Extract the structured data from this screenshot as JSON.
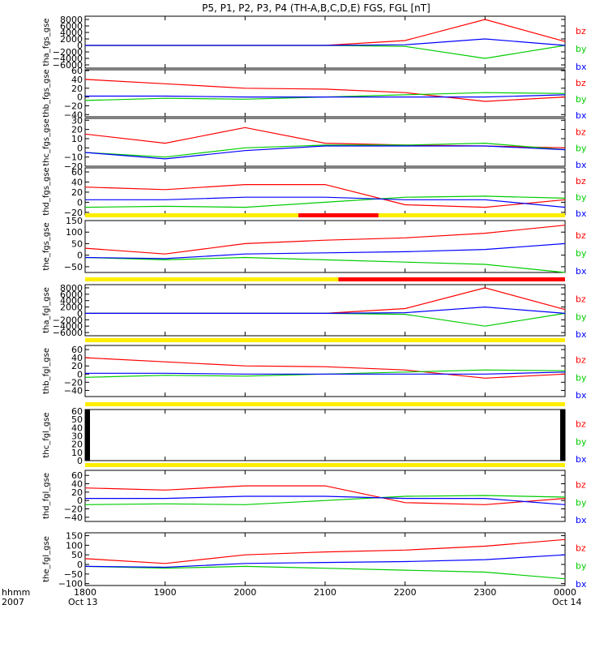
{
  "title": "P5, P1, P2, P3, P4 (TH-A,B,C,D,E) FGS, FGL [nT]",
  "footer": {
    "left_top": "hhmm",
    "left_bottom": "2007",
    "x_ticks": [
      "1800",
      "1900",
      "2000",
      "2100",
      "2200",
      "2300",
      "0000"
    ],
    "date_left": "Oct 13",
    "date_right": "Oct 14"
  },
  "legend": {
    "bz": {
      "label": "bz",
      "color": "#ff0000"
    },
    "by": {
      "label": "by",
      "color": "#00cc00"
    },
    "bx": {
      "label": "bx",
      "color": "#0000ff"
    }
  },
  "chart_data": [
    {
      "type": "line",
      "ylabel": "tha_fgs_gse",
      "ylim": [
        -7000,
        9000
      ],
      "yticks": [
        "8000",
        "6000",
        "4000",
        "2000",
        "0",
        "−2000",
        "−4000",
        "−6000"
      ],
      "x": [
        "1800",
        "1900",
        "2000",
        "2100",
        "2200",
        "2300",
        "0000"
      ],
      "series": [
        {
          "name": "bz",
          "values": [
            0,
            0,
            0,
            0,
            1500,
            8000,
            1200
          ]
        },
        {
          "name": "by",
          "values": [
            0,
            0,
            0,
            0,
            -300,
            -4000,
            0
          ]
        },
        {
          "name": "bx",
          "values": [
            0,
            0,
            0,
            0,
            200,
            2000,
            0
          ]
        }
      ],
      "status_bar": null
    },
    {
      "type": "line",
      "ylabel": "thb_fgs_gse",
      "ylim": [
        -45,
        62
      ],
      "yticks": [
        "60",
        "40",
        "20",
        "0",
        "−20",
        "−40"
      ],
      "x": [
        "1800",
        "1900",
        "2000",
        "2100",
        "2200",
        "2300",
        "0000"
      ],
      "series": [
        {
          "name": "bz",
          "values": [
            40,
            30,
            20,
            18,
            10,
            -10,
            0
          ]
        },
        {
          "name": "by",
          "values": [
            -8,
            -3,
            -5,
            0,
            5,
            10,
            8
          ]
        },
        {
          "name": "bx",
          "values": [
            2,
            2,
            0,
            0,
            0,
            0,
            5
          ]
        }
      ],
      "status_bar": null
    },
    {
      "type": "line",
      "ylabel": "thc_fgs_gse",
      "ylim": [
        -20,
        32
      ],
      "yticks": [
        "30",
        "20",
        "10",
        "0",
        "−10",
        "−20"
      ],
      "x": [
        "1800",
        "1900",
        "2000",
        "2100",
        "2200",
        "2300",
        "0000"
      ],
      "series": [
        {
          "name": "bz",
          "values": [
            15,
            5,
            22,
            5,
            3,
            2,
            0
          ]
        },
        {
          "name": "by",
          "values": [
            -5,
            -10,
            0,
            3,
            3,
            5,
            -2
          ]
        },
        {
          "name": "bx",
          "values": [
            -5,
            -12,
            -3,
            2,
            2,
            2,
            -2
          ]
        }
      ],
      "status_bar": null
    },
    {
      "type": "line",
      "ylabel": "thd_fgs_gse",
      "ylim": [
        -25,
        68
      ],
      "yticks": [
        "60",
        "40",
        "20",
        "0",
        "−20"
      ],
      "x": [
        "1800",
        "1900",
        "2000",
        "2100",
        "2200",
        "2300",
        "0000"
      ],
      "series": [
        {
          "name": "bz",
          "values": [
            30,
            25,
            35,
            35,
            -5,
            -10,
            5
          ]
        },
        {
          "name": "by",
          "values": [
            -10,
            -8,
            -10,
            0,
            10,
            12,
            8
          ]
        },
        {
          "name": "bx",
          "values": [
            5,
            5,
            10,
            10,
            5,
            5,
            -10
          ]
        }
      ],
      "status_bar": null
    },
    {
      "type": "line",
      "ylabel": "the_fgs_gse",
      "ylim": [
        -75,
        150
      ],
      "yticks": [
        "150",
        "100",
        "50",
        "0",
        "−50"
      ],
      "x": [
        "1800",
        "1900",
        "2000",
        "2100",
        "2200",
        "2300",
        "0000"
      ],
      "series": [
        {
          "name": "bz",
          "values": [
            30,
            5,
            50,
            65,
            75,
            95,
            130
          ]
        },
        {
          "name": "by",
          "values": [
            -10,
            -20,
            -10,
            -20,
            -30,
            -40,
            -75
          ]
        },
        {
          "name": "bx",
          "values": [
            -10,
            -15,
            5,
            10,
            15,
            25,
            50
          ]
        }
      ],
      "status_bar": {
        "bad_range": [
          "2040",
          "2140"
        ]
      }
    },
    {
      "type": "line",
      "ylabel": "tha_fgl_gse",
      "ylim": [
        -7000,
        9000
      ],
      "yticks": [
        "8000",
        "6000",
        "4000",
        "2000",
        "0",
        "−2000",
        "−4000",
        "−6000"
      ],
      "x": [
        "1800",
        "1900",
        "2000",
        "2100",
        "2200",
        "2300",
        "0000"
      ],
      "series": [
        {
          "name": "bz",
          "values": [
            0,
            0,
            0,
            0,
            1500,
            8000,
            1200
          ]
        },
        {
          "name": "by",
          "values": [
            0,
            0,
            0,
            0,
            -300,
            -4000,
            0
          ]
        },
        {
          "name": "bx",
          "values": [
            0,
            0,
            0,
            0,
            200,
            2000,
            0
          ]
        }
      ],
      "status_bar": {
        "bad_range": [
          "2110",
          "0000"
        ]
      }
    },
    {
      "type": "line",
      "ylabel": "thb_fgl_gse",
      "ylim": [
        -55,
        70
      ],
      "yticks": [
        "60",
        "40",
        "20",
        "0",
        "−20",
        "−40"
      ],
      "x": [
        "1800",
        "1900",
        "2000",
        "2100",
        "2200",
        "2300",
        "0000"
      ],
      "series": [
        {
          "name": "bz",
          "values": [
            40,
            30,
            20,
            18,
            10,
            -10,
            0
          ]
        },
        {
          "name": "by",
          "values": [
            -8,
            -3,
            -5,
            0,
            5,
            10,
            8
          ]
        },
        {
          "name": "bx",
          "values": [
            2,
            2,
            0,
            0,
            0,
            0,
            5
          ]
        }
      ],
      "status_bar": {
        "bad_range": null
      }
    },
    {
      "type": "line",
      "ylabel": "thc_fgl_gse",
      "ylim": [
        0,
        62
      ],
      "yticks": [
        "60",
        "50",
        "40",
        "30",
        "20",
        "10",
        "0"
      ],
      "x": [
        "1800",
        "1900",
        "2000",
        "2100",
        "2200",
        "2300",
        "0000"
      ],
      "series": [],
      "status_bar": {
        "bad_range": null
      }
    },
    {
      "type": "line",
      "ylabel": "thd_fgl_gse",
      "ylim": [
        -50,
        72
      ],
      "yticks": [
        "60",
        "40",
        "20",
        "0",
        "−20",
        "−40"
      ],
      "x": [
        "1800",
        "1900",
        "2000",
        "2100",
        "2200",
        "2300",
        "0000"
      ],
      "series": [
        {
          "name": "bz",
          "values": [
            30,
            25,
            35,
            35,
            -5,
            -10,
            5
          ]
        },
        {
          "name": "by",
          "values": [
            -10,
            -8,
            -10,
            0,
            10,
            12,
            8
          ]
        },
        {
          "name": "bx",
          "values": [
            5,
            5,
            10,
            10,
            5,
            5,
            -10
          ]
        }
      ],
      "status_bar": {
        "bad_range": null
      }
    },
    {
      "type": "line",
      "ylabel": "the_fgl_gse",
      "ylim": [
        -110,
        165
      ],
      "yticks": [
        "150",
        "100",
        "50",
        "0",
        "−50",
        "−100"
      ],
      "x": [
        "1800",
        "1900",
        "2000",
        "2100",
        "2200",
        "2300",
        "0000"
      ],
      "series": [
        {
          "name": "bz",
          "values": [
            30,
            5,
            50,
            65,
            75,
            95,
            130
          ]
        },
        {
          "name": "by",
          "values": [
            -10,
            -20,
            -10,
            -20,
            -30,
            -40,
            -75
          ]
        },
        {
          "name": "bx",
          "values": [
            -10,
            -15,
            5,
            10,
            15,
            25,
            50
          ]
        }
      ],
      "status_bar": null
    }
  ]
}
